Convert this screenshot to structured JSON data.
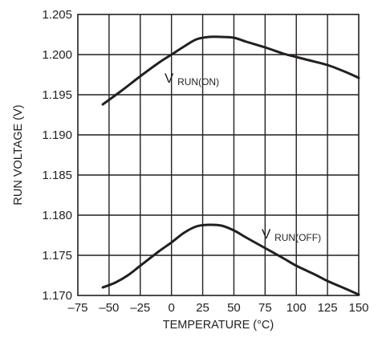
{
  "chart_data": {
    "type": "line",
    "title": "",
    "xlabel": "TEMPERATURE (°C)",
    "ylabel": "RUN VOLTAGE (V)",
    "xlim": [
      -75,
      150
    ],
    "ylim": [
      1.17,
      1.205
    ],
    "x_ticks": [
      -75,
      -50,
      -25,
      0,
      25,
      50,
      75,
      100,
      125,
      150
    ],
    "x_tick_labels": [
      "–75",
      "–50",
      "–25",
      "0",
      "25",
      "50",
      "75",
      "100",
      "125",
      "150"
    ],
    "y_ticks": [
      1.17,
      1.175,
      1.18,
      1.185,
      1.19,
      1.195,
      1.2,
      1.205
    ],
    "y_tick_labels": [
      "1.170",
      "1.175",
      "1.180",
      "1.185",
      "1.190",
      "1.195",
      "1.200",
      "1.205"
    ],
    "grid": true,
    "series": [
      {
        "name": "VRUN(ON)",
        "label_main": "V",
        "label_sub": "RUN(ON)",
        "x": [
          -55,
          -40,
          -25,
          -10,
          0,
          10,
          20,
          30,
          40,
          50,
          60,
          75,
          90,
          100,
          110,
          125,
          140,
          150
        ],
        "y": [
          1.1938,
          1.1955,
          1.1973,
          1.199,
          1.2,
          1.201,
          1.2019,
          1.2022,
          1.2022,
          1.2021,
          1.2016,
          1.2009,
          1.2001,
          1.1997,
          1.1993,
          1.1987,
          1.1978,
          1.1971
        ]
      },
      {
        "name": "VRUN(OFF)",
        "label_main": "V",
        "label_sub": "RUN(OFF)",
        "x": [
          -55,
          -45,
          -35,
          -25,
          -10,
          0,
          10,
          20,
          30,
          40,
          50,
          60,
          75,
          90,
          100,
          115,
          125,
          140,
          150
        ],
        "y": [
          1.171,
          1.1716,
          1.1725,
          1.1737,
          1.1755,
          1.1766,
          1.1778,
          1.1786,
          1.1788,
          1.1787,
          1.1781,
          1.1772,
          1.1759,
          1.1746,
          1.1737,
          1.1726,
          1.1718,
          1.1708,
          1.1701
        ]
      }
    ]
  }
}
